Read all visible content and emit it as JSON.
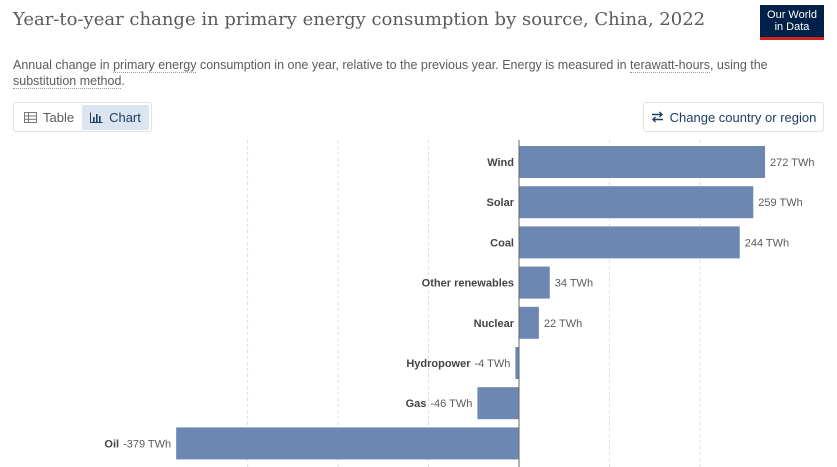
{
  "header": {
    "title": "Year-to-year change in primary energy consumption by source, China, 2022",
    "subtitle_parts": [
      "Annual change in ",
      "primary energy",
      " consumption in one year, relative to the previous year. Energy is measured in ",
      "terawatt-hours",
      ", using the ",
      "substitution method",
      "."
    ],
    "logo_line1": "Our World",
    "logo_line2": "in Data"
  },
  "controls": {
    "table_label": "Table",
    "chart_label": "Chart",
    "change_label": "Change country or region"
  },
  "colors": {
    "bar": "#6d87b3",
    "axis": "#666666",
    "grid": "#dddddd"
  },
  "chart_data": {
    "type": "bar",
    "orientation": "horizontal",
    "unit": "TWh",
    "title": "Year-to-year change in primary energy consumption by source, China, 2022",
    "categories": [
      "Wind",
      "Solar",
      "Coal",
      "Other renewables",
      "Nuclear",
      "Hydropower",
      "Gas",
      "Oil"
    ],
    "values": [
      272,
      259,
      244,
      34,
      22,
      -4,
      -46,
      -379
    ],
    "value_labels": [
      "272 TWh",
      "259 TWh",
      "244 TWh",
      "34 TWh",
      "22 TWh",
      "-4 TWh",
      "-46 TWh",
      "-379 TWh"
    ],
    "xlim": [
      -400,
      300
    ],
    "gridlines": [
      -300,
      -200,
      -100,
      0,
      100,
      200
    ],
    "grid": true
  }
}
